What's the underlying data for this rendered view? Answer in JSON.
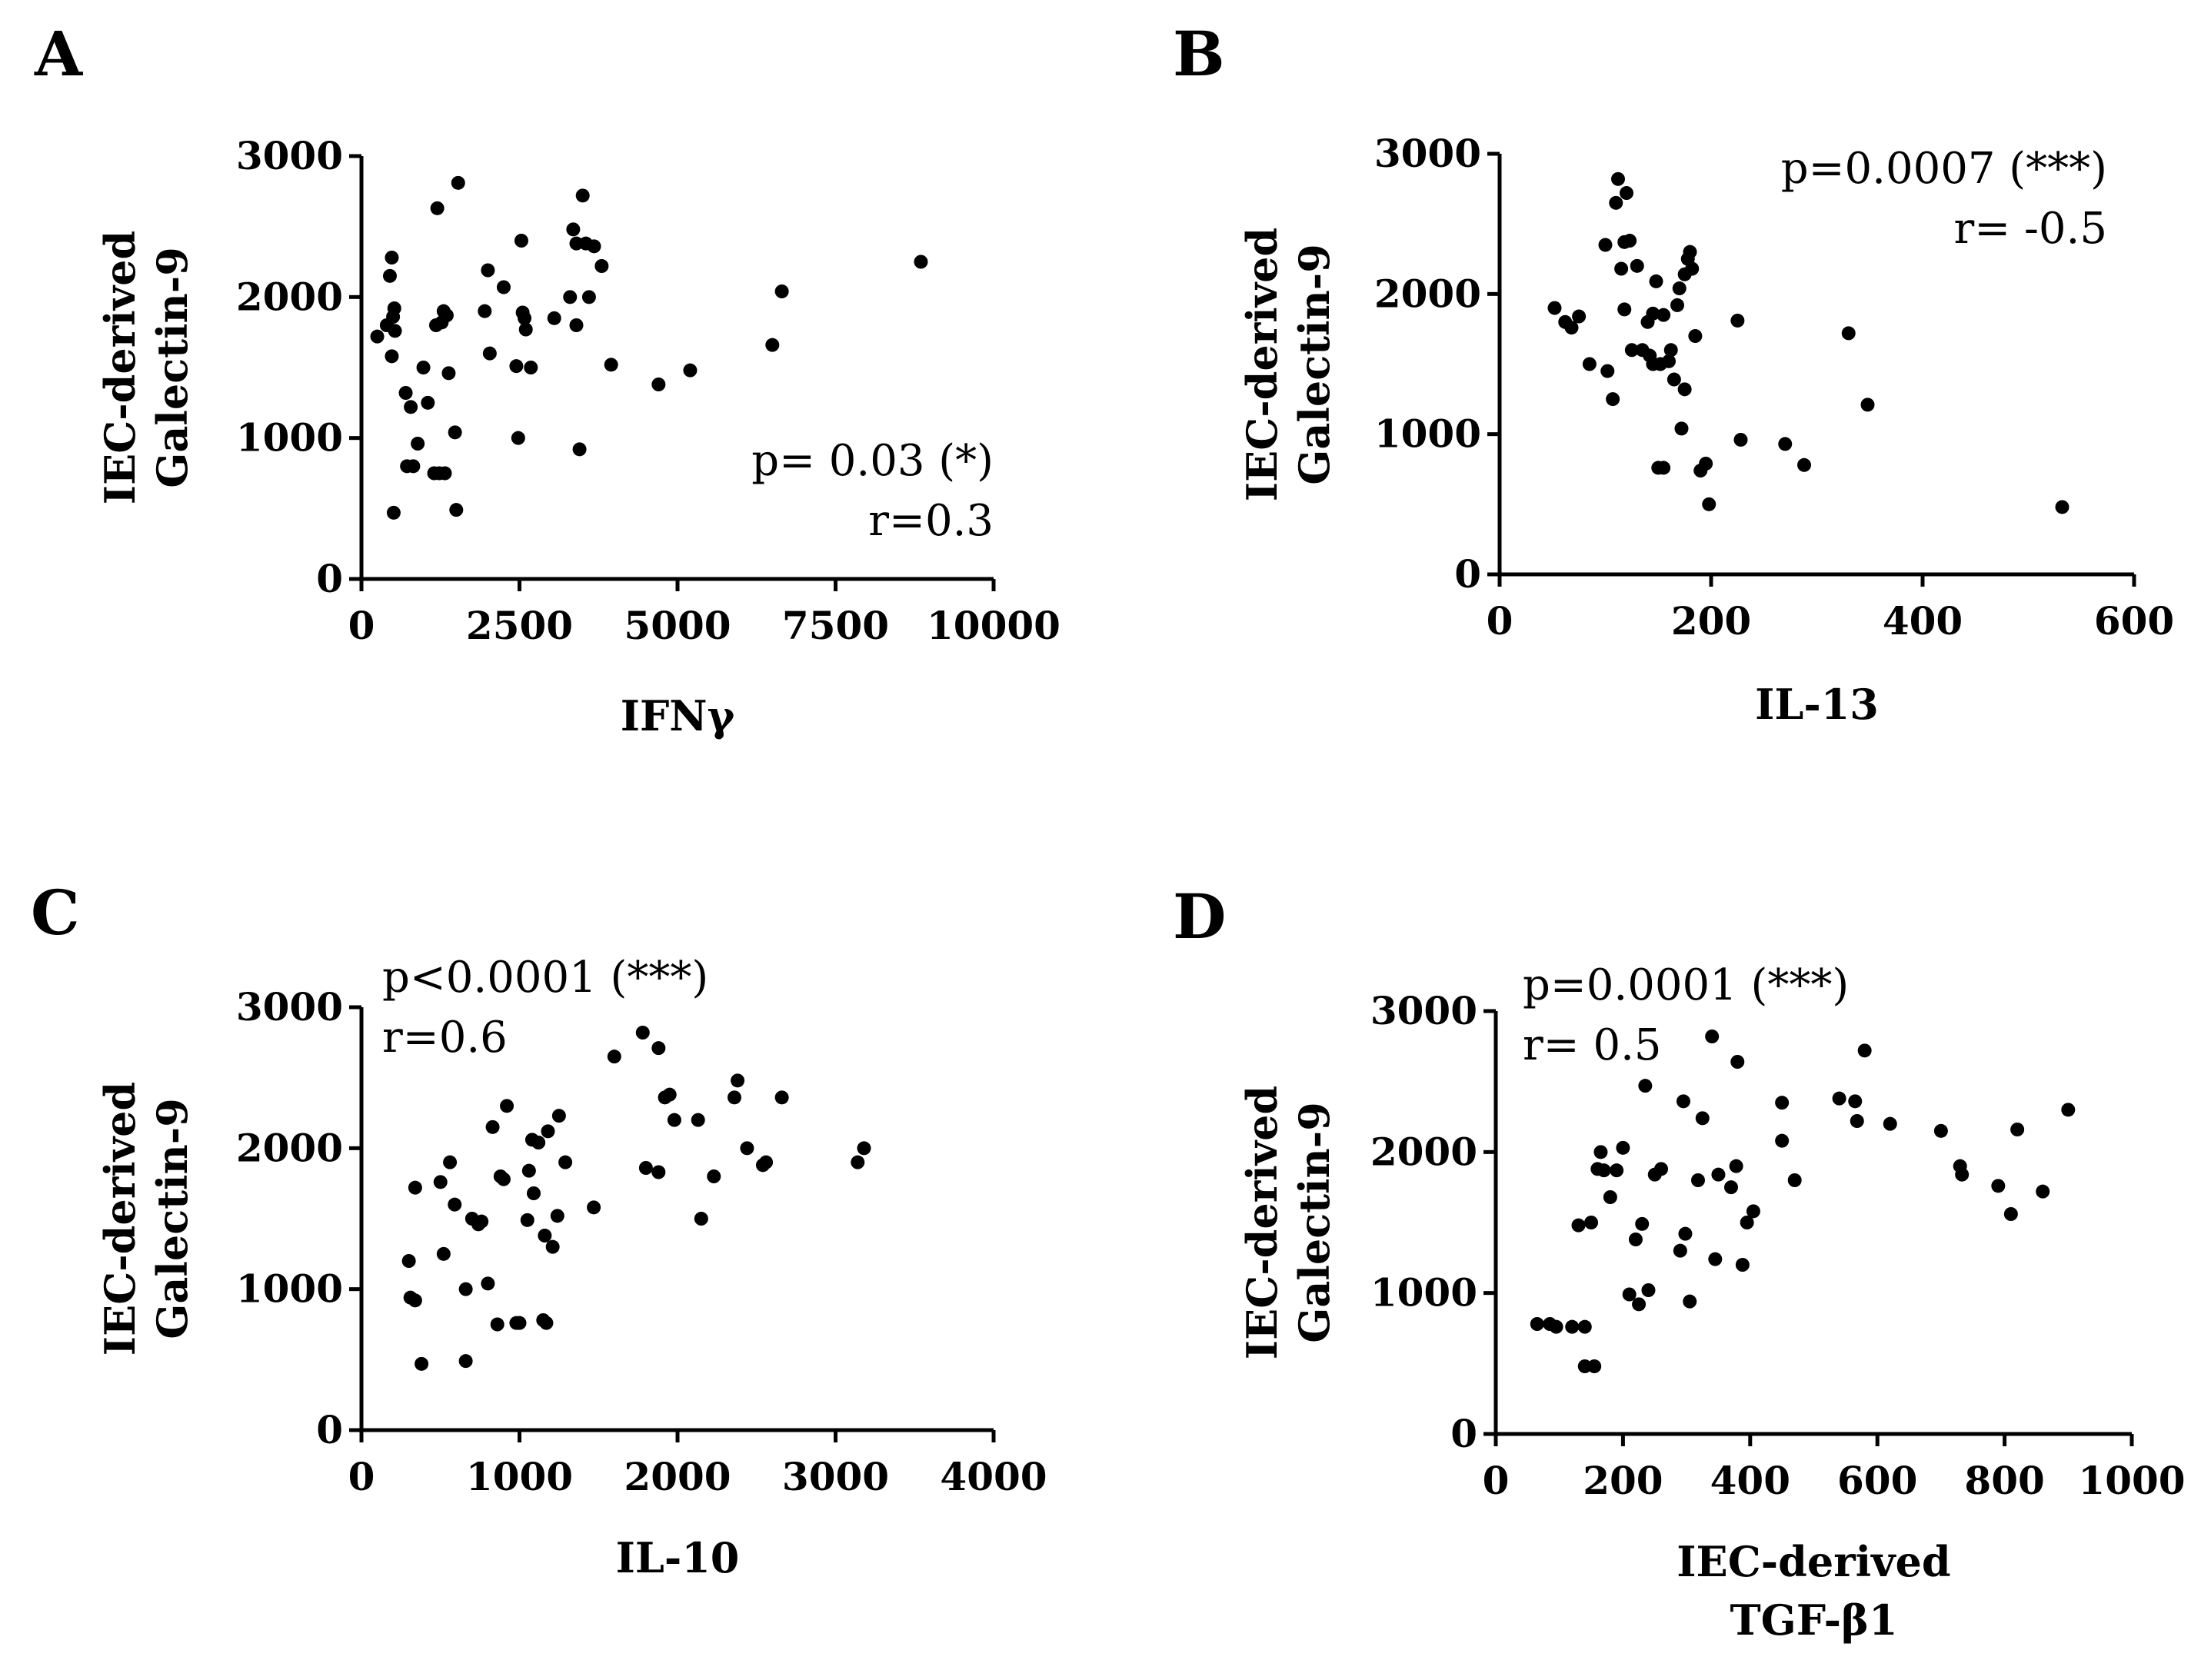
{
  "chart_data": [
    {
      "type": "scatter",
      "panel": "A",
      "ylabel": [
        "IEC-derived",
        "Galectin-9"
      ],
      "xlabel": [
        "IFNγ"
      ],
      "xlim": [
        0,
        10000
      ],
      "ylim": [
        0,
        3000
      ],
      "xticks": [
        "0",
        "2500",
        "5000",
        "7500",
        "10000"
      ],
      "yticks": [
        "0",
        "1000",
        "2000",
        "3000"
      ],
      "annotation": [
        "p= 0.03 (*)",
        "r=0.3"
      ],
      "annotation_pos": "bottom-right",
      "points": [
        [
          250,
          1720
        ],
        [
          400,
          1800
        ],
        [
          450,
          2150
        ],
        [
          480,
          2280
        ],
        [
          500,
          1860
        ],
        [
          520,
          1920
        ],
        [
          480,
          1580
        ],
        [
          530,
          1760
        ],
        [
          510,
          470
        ],
        [
          700,
          1320
        ],
        [
          720,
          800
        ],
        [
          780,
          1220
        ],
        [
          820,
          800
        ],
        [
          890,
          960
        ],
        [
          980,
          1500
        ],
        [
          1050,
          1250
        ],
        [
          1150,
          750
        ],
        [
          1180,
          1800
        ],
        [
          1200,
          2630
        ],
        [
          1230,
          750
        ],
        [
          1270,
          1820
        ],
        [
          1300,
          1900
        ],
        [
          1320,
          750
        ],
        [
          1350,
          1870
        ],
        [
          1380,
          1460
        ],
        [
          1480,
          1040
        ],
        [
          1530,
          2810
        ],
        [
          1500,
          490
        ],
        [
          1950,
          1900
        ],
        [
          2000,
          2190
        ],
        [
          2030,
          1600
        ],
        [
          2250,
          2070
        ],
        [
          2450,
          1510
        ],
        [
          2480,
          1000
        ],
        [
          2530,
          2400
        ],
        [
          2550,
          1890
        ],
        [
          2580,
          1850
        ],
        [
          2600,
          1770
        ],
        [
          2680,
          1500
        ],
        [
          3050,
          1850
        ],
        [
          3300,
          2000
        ],
        [
          3350,
          2480
        ],
        [
          3400,
          2380
        ],
        [
          3400,
          1800
        ],
        [
          3450,
          920
        ],
        [
          3500,
          2720
        ],
        [
          3550,
          2380
        ],
        [
          3600,
          2000
        ],
        [
          3680,
          2360
        ],
        [
          3800,
          2220
        ],
        [
          3950,
          1520
        ],
        [
          4700,
          1380
        ],
        [
          5200,
          1480
        ],
        [
          6500,
          1660
        ],
        [
          6650,
          2040
        ],
        [
          8850,
          2250
        ]
      ]
    },
    {
      "type": "scatter",
      "panel": "B",
      "ylabel": [
        "IEC-derived",
        "Galectin-9"
      ],
      "xlabel": [
        "IL-13"
      ],
      "xlim": [
        0,
        600
      ],
      "ylim": [
        0,
        3000
      ],
      "xticks": [
        "0",
        "200",
        "400",
        "600"
      ],
      "yticks": [
        "0",
        "1000",
        "2000",
        "3000"
      ],
      "annotation": [
        "p=0.0007 (***)",
        "r= -0.5"
      ],
      "annotation_pos": "top-right",
      "points": [
        [
          52,
          1900
        ],
        [
          62,
          1800
        ],
        [
          68,
          1760
        ],
        [
          75,
          1840
        ],
        [
          85,
          1500
        ],
        [
          100,
          2350
        ],
        [
          102,
          1450
        ],
        [
          107,
          1250
        ],
        [
          110,
          2650
        ],
        [
          112,
          2820
        ],
        [
          115,
          2180
        ],
        [
          118,
          2370
        ],
        [
          118,
          1890
        ],
        [
          120,
          2720
        ],
        [
          123,
          2380
        ],
        [
          125,
          1600
        ],
        [
          130,
          2200
        ],
        [
          135,
          1600
        ],
        [
          140,
          1800
        ],
        [
          142,
          1560
        ],
        [
          145,
          1500
        ],
        [
          145,
          1860
        ],
        [
          148,
          2090
        ],
        [
          150,
          760
        ],
        [
          152,
          1500
        ],
        [
          155,
          1850
        ],
        [
          155,
          760
        ],
        [
          160,
          1520
        ],
        [
          162,
          1600
        ],
        [
          165,
          1390
        ],
        [
          168,
          1920
        ],
        [
          170,
          2040
        ],
        [
          172,
          1040
        ],
        [
          175,
          2140
        ],
        [
          175,
          1320
        ],
        [
          178,
          2250
        ],
        [
          180,
          2300
        ],
        [
          182,
          2180
        ],
        [
          185,
          1700
        ],
        [
          190,
          740
        ],
        [
          195,
          790
        ],
        [
          198,
          500
        ],
        [
          225,
          1810
        ],
        [
          228,
          960
        ],
        [
          270,
          930
        ],
        [
          288,
          780
        ],
        [
          330,
          1720
        ],
        [
          348,
          1210
        ],
        [
          532,
          480
        ]
      ]
    },
    {
      "type": "scatter",
      "panel": "C",
      "ylabel": [
        "IEC-derived",
        "Galectin-9"
      ],
      "xlabel": [
        "IL-10"
      ],
      "xlim": [
        0,
        4000
      ],
      "ylim": [
        0,
        3000
      ],
      "xticks": [
        "0",
        "1000",
        "2000",
        "3000",
        "4000"
      ],
      "yticks": [
        "0",
        "1000",
        "2000",
        "3000"
      ],
      "annotation": [
        "p<0.0001 (***)",
        "r=0.6"
      ],
      "annotation_pos": "top-left",
      "points": [
        [
          300,
          1200
        ],
        [
          310,
          940
        ],
        [
          340,
          920
        ],
        [
          340,
          1720
        ],
        [
          380,
          470
        ],
        [
          500,
          1760
        ],
        [
          520,
          1250
        ],
        [
          560,
          1900
        ],
        [
          590,
          1600
        ],
        [
          660,
          1000
        ],
        [
          660,
          490
        ],
        [
          700,
          1500
        ],
        [
          740,
          1460
        ],
        [
          760,
          1480
        ],
        [
          800,
          1040
        ],
        [
          830,
          2150
        ],
        [
          860,
          750
        ],
        [
          880,
          1800
        ],
        [
          900,
          1780
        ],
        [
          920,
          2300
        ],
        [
          980,
          760
        ],
        [
          1000,
          760
        ],
        [
          1050,
          1490
        ],
        [
          1060,
          1840
        ],
        [
          1080,
          2060
        ],
        [
          1090,
          1680
        ],
        [
          1120,
          2040
        ],
        [
          1150,
          780
        ],
        [
          1160,
          1380
        ],
        [
          1170,
          760
        ],
        [
          1180,
          2120
        ],
        [
          1210,
          1300
        ],
        [
          1240,
          1520
        ],
        [
          1250,
          2230
        ],
        [
          1290,
          1900
        ],
        [
          1470,
          1580
        ],
        [
          1600,
          2650
        ],
        [
          1780,
          2820
        ],
        [
          1800,
          1860
        ],
        [
          1880,
          1830
        ],
        [
          1880,
          2710
        ],
        [
          1920,
          2360
        ],
        [
          1950,
          2380
        ],
        [
          1980,
          2200
        ],
        [
          2130,
          2200
        ],
        [
          2150,
          1500
        ],
        [
          2230,
          1800
        ],
        [
          2380,
          2480
        ],
        [
          2360,
          2360
        ],
        [
          2440,
          2000
        ],
        [
          2540,
          1880
        ],
        [
          2560,
          1900
        ],
        [
          2660,
          2360
        ],
        [
          3140,
          1900
        ],
        [
          3180,
          2000
        ]
      ]
    },
    {
      "type": "scatter",
      "panel": "D",
      "ylabel": [
        "IEC-derived",
        "Galectin-9"
      ],
      "xlabel": [
        "IEC-derived",
        "TGF-β1"
      ],
      "xlim": [
        0,
        1000
      ],
      "ylim": [
        0,
        3000
      ],
      "xticks": [
        "0",
        "200",
        "400",
        "600",
        "800",
        "1000"
      ],
      "yticks": [
        "0",
        "1000",
        "2000",
        "3000"
      ],
      "annotation": [
        "p=0.0001 (***)",
        "r= 0.5"
      ],
      "annotation_pos": "top-left",
      "points": [
        [
          65,
          780
        ],
        [
          85,
          780
        ],
        [
          95,
          760
        ],
        [
          120,
          760
        ],
        [
          130,
          1480
        ],
        [
          140,
          480
        ],
        [
          140,
          760
        ],
        [
          150,
          1500
        ],
        [
          155,
          480
        ],
        [
          160,
          1880
        ],
        [
          165,
          2000
        ],
        [
          170,
          1870
        ],
        [
          180,
          1680
        ],
        [
          190,
          1870
        ],
        [
          200,
          2030
        ],
        [
          210,
          990
        ],
        [
          220,
          1380
        ],
        [
          225,
          920
        ],
        [
          230,
          1490
        ],
        [
          235,
          2470
        ],
        [
          240,
          1020
        ],
        [
          250,
          1840
        ],
        [
          260,
          1880
        ],
        [
          290,
          1300
        ],
        [
          295,
          2360
        ],
        [
          298,
          1420
        ],
        [
          305,
          940
        ],
        [
          318,
          1800
        ],
        [
          325,
          2240
        ],
        [
          340,
          2820
        ],
        [
          345,
          1240
        ],
        [
          350,
          1840
        ],
        [
          370,
          1750
        ],
        [
          378,
          1900
        ],
        [
          380,
          2640
        ],
        [
          388,
          1200
        ],
        [
          395,
          1500
        ],
        [
          405,
          1580
        ],
        [
          450,
          2350
        ],
        [
          450,
          2080
        ],
        [
          470,
          1800
        ],
        [
          540,
          2380
        ],
        [
          565,
          2360
        ],
        [
          568,
          2220
        ],
        [
          580,
          2720
        ],
        [
          620,
          2200
        ],
        [
          700,
          2150
        ],
        [
          730,
          1900
        ],
        [
          733,
          1840
        ],
        [
          790,
          1760
        ],
        [
          810,
          1560
        ],
        [
          820,
          2160
        ],
        [
          860,
          1720
        ],
        [
          900,
          2300
        ]
      ]
    }
  ],
  "panel_letters": [
    "A",
    "B",
    "C",
    "D"
  ]
}
